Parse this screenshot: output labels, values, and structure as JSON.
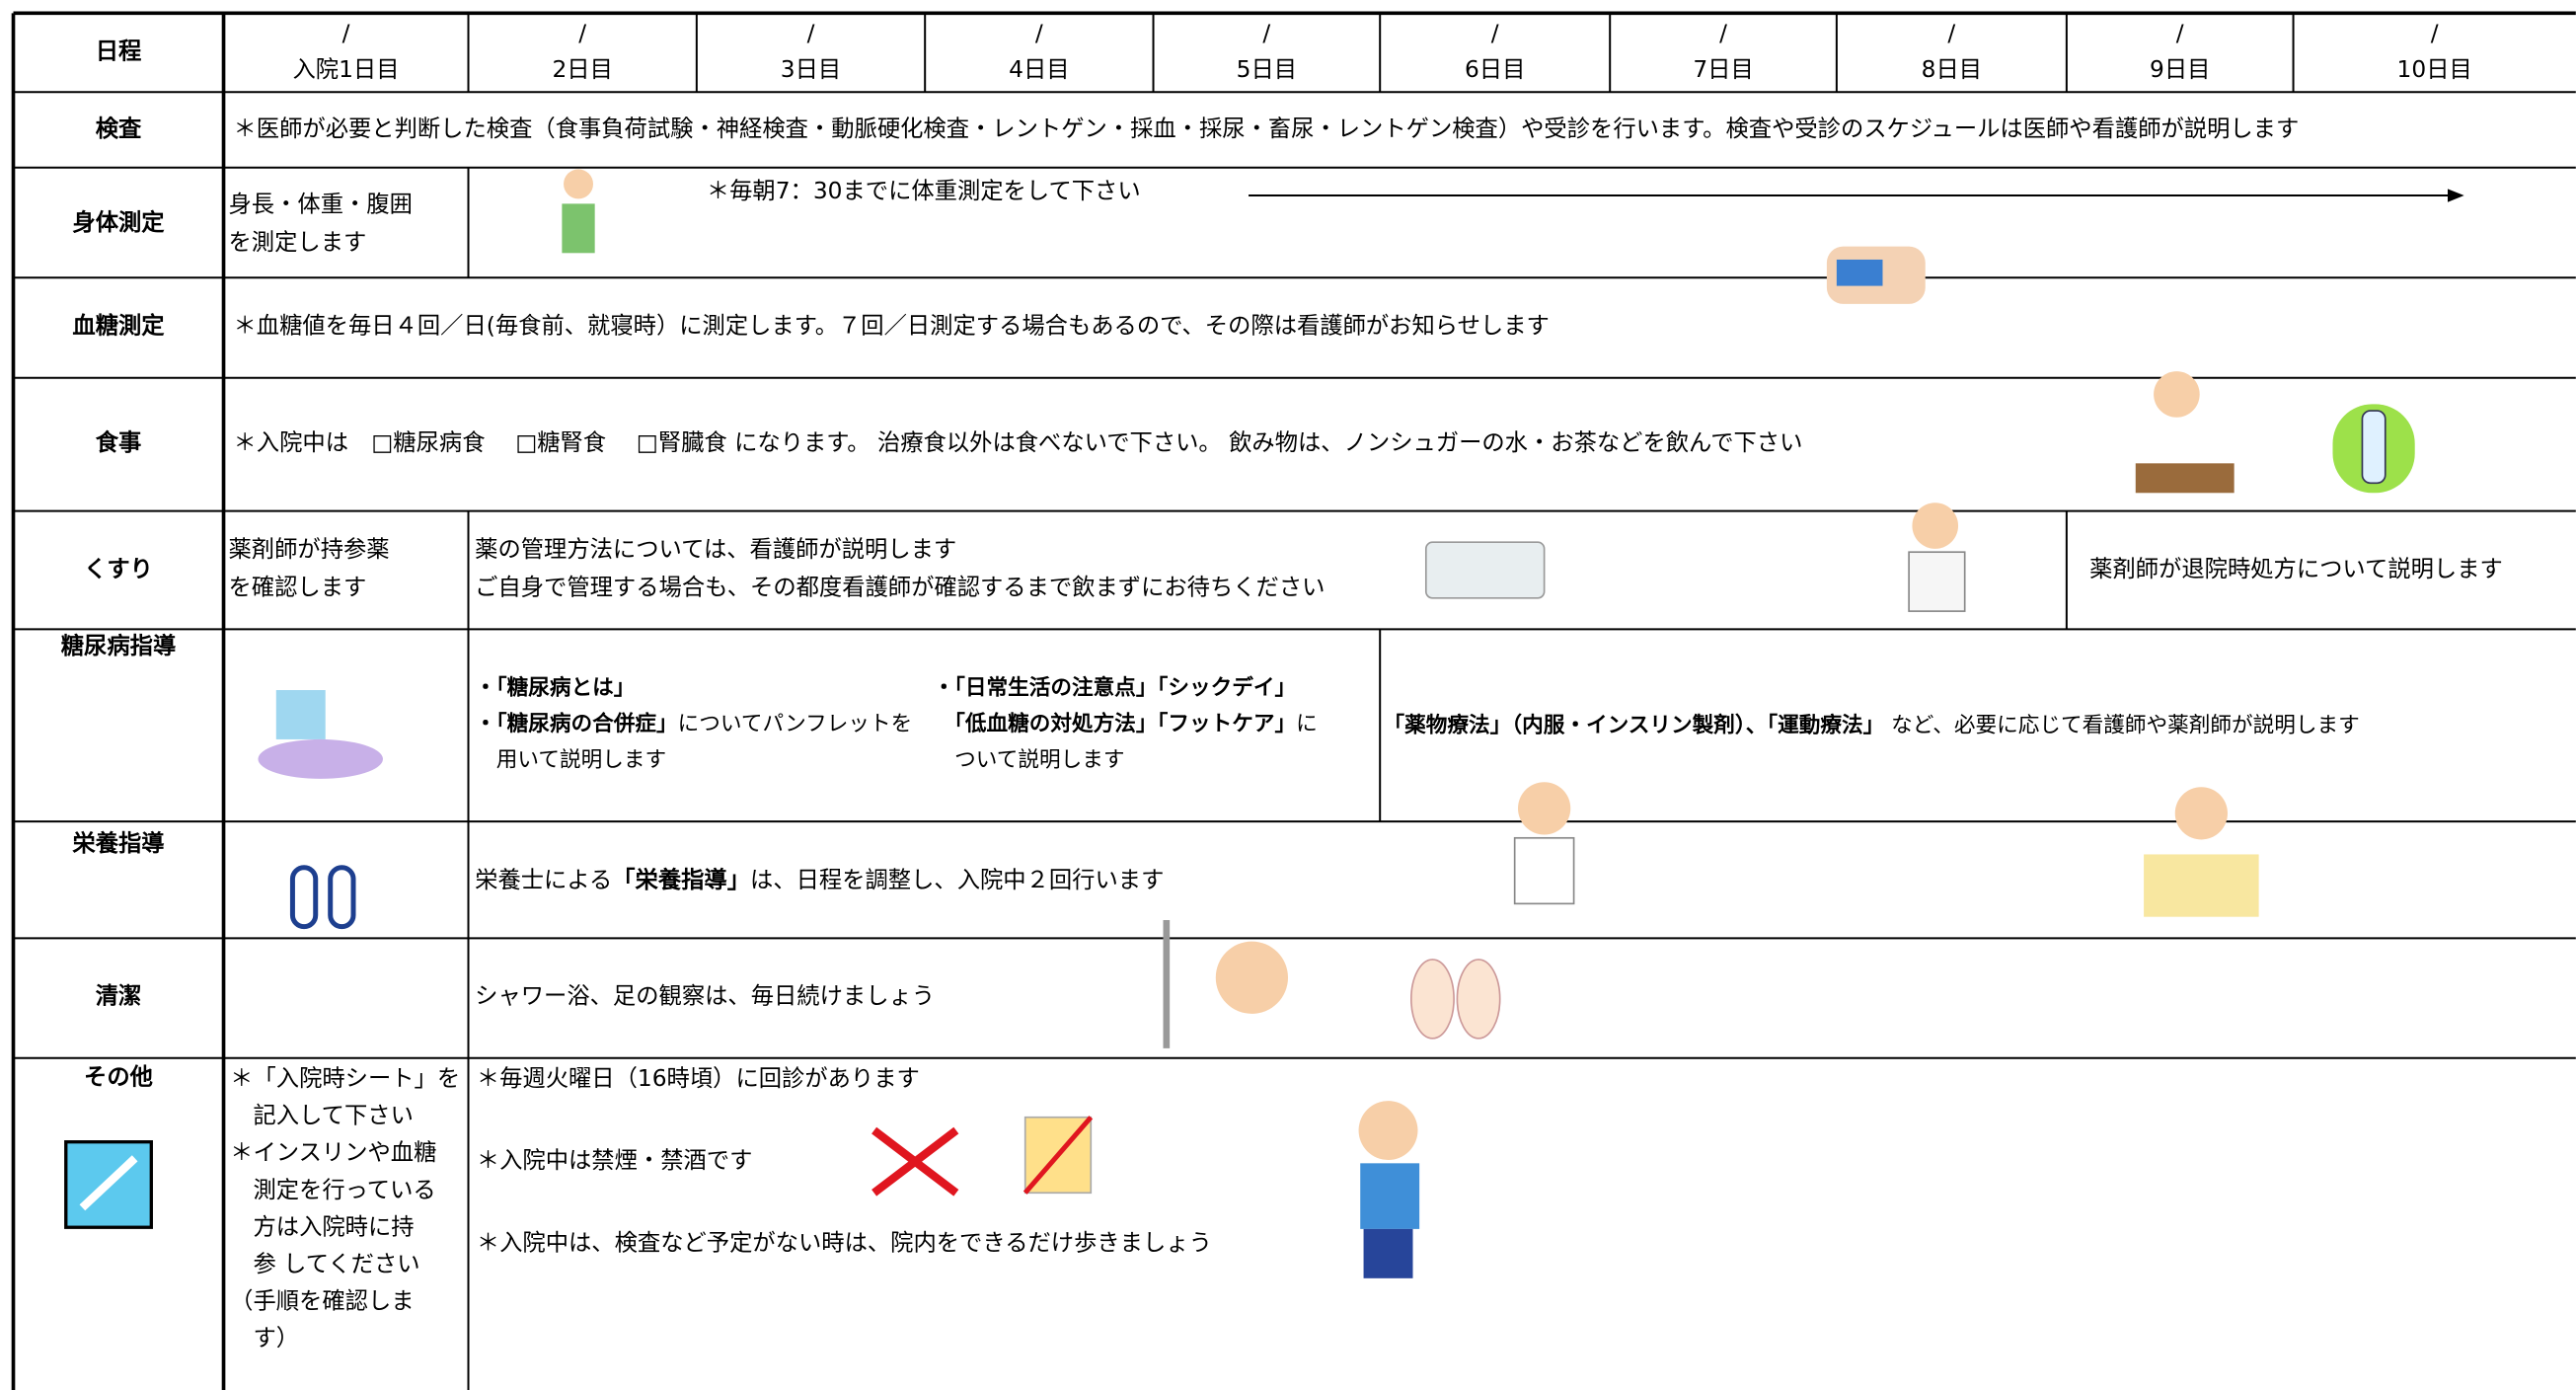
{
  "schedule": {
    "header": {
      "label": "日程",
      "days": [
        {
          "date": "/",
          "label": "入院1日目"
        },
        {
          "date": "/",
          "label": "2日目"
        },
        {
          "date": "/",
          "label": "3日目"
        },
        {
          "date": "/",
          "label": "4日目"
        },
        {
          "date": "/",
          "label": "5日目"
        },
        {
          "date": "/",
          "label": "6日目"
        },
        {
          "date": "/",
          "label": "7日目"
        },
        {
          "date": "/",
          "label": "8日目"
        },
        {
          "date": "/",
          "label": "9日目"
        },
        {
          "date": "/",
          "label": "10日目"
        }
      ]
    },
    "exam": {
      "label": "検査",
      "text": "＊医師が必要と判断した検査（食事負荷試験・神経検査・動脈硬化検査・レントゲン・採血・採尿・畜尿・レントゲン検査）や受診を行います。検査や受診のスケジュールは医師や看護師が説明します"
    },
    "body": {
      "label": "身体測定",
      "first": [
        "身長・体重・腹囲",
        "を測定します"
      ],
      "note": "＊毎朝7：30までに体重測定をして下さい"
    },
    "glucose": {
      "label": "血糖測定",
      "text": "＊血糖値を毎日４回／日(毎食前、就寝時）に測定します。７回／日測定する場合もあるので、その際は看護師がお知らせします"
    },
    "meal": {
      "label": "食事",
      "text": "＊入院中は　□糖尿病食　 □糖腎食　 □腎臓食  になります。 治療食以外は食べないで下さい。 飲み物は、ノンシュガーの水・お茶などを飲んで下さい"
    },
    "medicine": {
      "label": "くすり",
      "first": [
        "薬剤師が持参薬",
        "を確認します"
      ],
      "middle": [
        "薬の管理方法については、看護師が説明します",
        "ご自身で管理する場合も、その都度看護師が確認するまで飲まずにお待ちください"
      ],
      "last": "薬剤師が退院時処方について説明します"
    },
    "diabetes": {
      "label": "糖尿病指導",
      "a": [
        {
          "bold": "・「糖尿病とは」",
          "text": ""
        },
        {
          "bold": "・「糖尿病の合併症」",
          "text": "についてパンフレットを"
        },
        {
          "bold": "",
          "text": "　用いて説明します"
        }
      ],
      "b": [
        {
          "bold": "・「日常生活の注意点」「シックデイ」",
          "text": ""
        },
        {
          "bold": "　「低血糖の対処方法」「フットケア」",
          "text": "に"
        },
        {
          "bold": "",
          "text": "　ついて説明します"
        }
      ],
      "c": {
        "bold": "「薬物療法」（内服・インスリン製剤）、「運動療法」",
        "text": " など、必要に応じて看護師や薬剤師が説明します"
      }
    },
    "nutrition": {
      "label": "栄養指導",
      "pre": "栄養士による",
      "bold": "「栄養指導」",
      "text": "は、日程を調整し、入院中２回行います"
    },
    "hygiene": {
      "label": "清潔",
      "text": "シャワー浴、足の観察は、毎日続けましょう"
    },
    "other": {
      "label": "その他",
      "first": [
        "＊「入院時シート」を",
        "　記入して下さい",
        "＊インスリンや血糖",
        "　測定を行っている",
        "　方は入院時に持",
        "　参 してください",
        "（手順を確認しま",
        "　す）"
      ],
      "notes": [
        "＊毎週火曜日（16時頃）に回診があります",
        "＊入院中は禁煙・禁酒です",
        "＊入院中は、検査など予定がない時は、院内をできるだけ歩きましょう"
      ]
    }
  }
}
